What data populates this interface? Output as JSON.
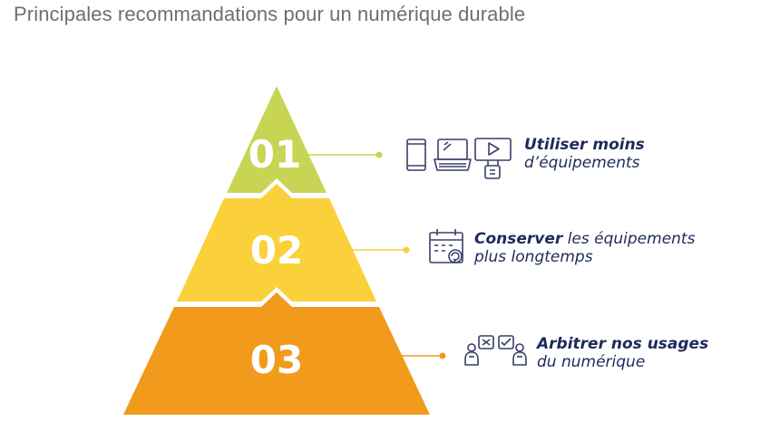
{
  "title": "Principales recommandations pour un numérique durable",
  "colors": {
    "level1": "#c8d454",
    "level2": "#fad13a",
    "level3": "#f29a1c",
    "text": "#1f2a5c",
    "icon": "#3a3f6a"
  },
  "levels": [
    {
      "number": "01",
      "icons": [
        "smartphone-icon",
        "laptop-icon",
        "monitor-play-icon"
      ],
      "label_bold": "Utiliser moins",
      "label_regular": "",
      "label_line2": "d’équipements",
      "line2_bold": true
    },
    {
      "number": "02",
      "icons": [
        "calendar-refresh-icon"
      ],
      "label_bold": "Conserver",
      "label_regular": " les équipements",
      "label_line2": "plus longtemps",
      "line2_bold": false
    },
    {
      "number": "03",
      "icons": [
        "choice-people-icon"
      ],
      "label_bold": "Arbitrer nos usages",
      "label_regular": "",
      "label_line2": "du numérique",
      "line2_bold": false
    }
  ]
}
